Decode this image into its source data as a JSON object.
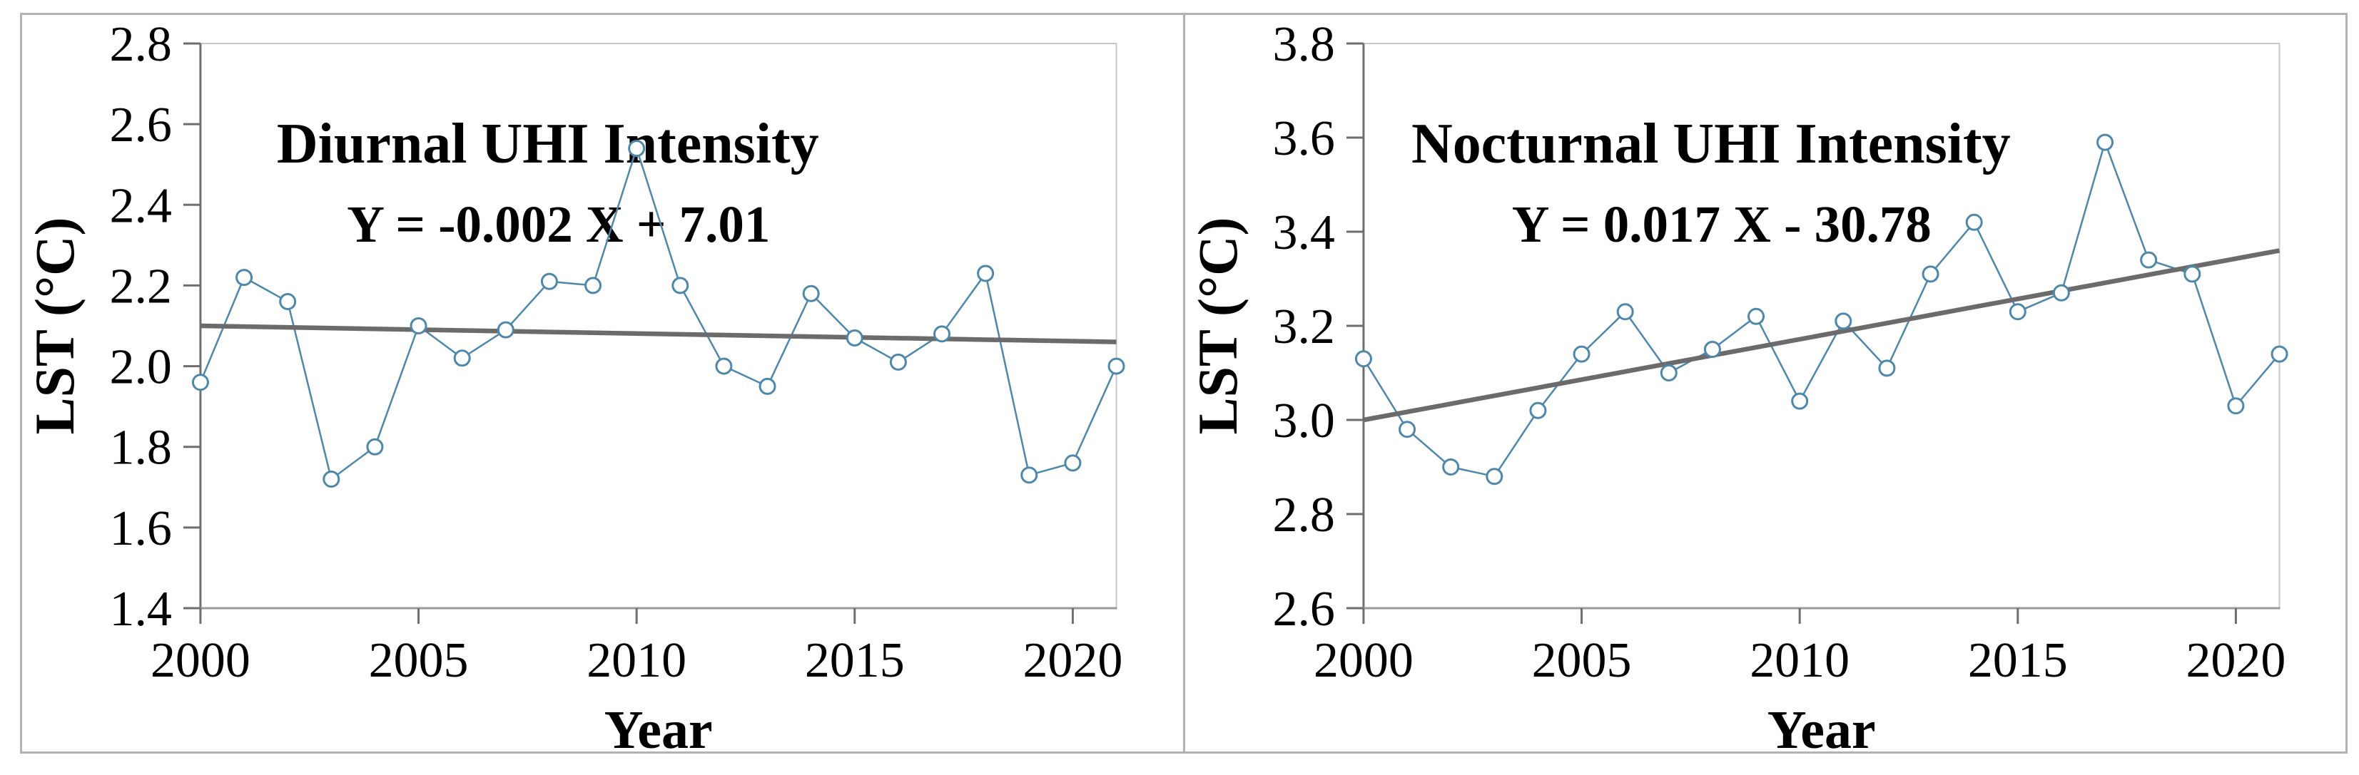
{
  "figure": {
    "background": "#ffffff",
    "border_color": "#b2b2b2",
    "divider_color": "#b2b2b2"
  },
  "chart_data": [
    {
      "type": "line",
      "panel": "left",
      "title": "Diurnal UHI Intensity",
      "equation": "Y = -0.002 X + 7.01",
      "xlabel": "Year",
      "ylabel": "LST (°C)",
      "x": [
        2000,
        2001,
        2002,
        2003,
        2004,
        2005,
        2006,
        2007,
        2008,
        2009,
        2010,
        2011,
        2012,
        2013,
        2014,
        2015,
        2016,
        2017,
        2018,
        2019,
        2020,
        2021
      ],
      "values": [
        1.96,
        2.22,
        2.16,
        1.72,
        1.8,
        2.1,
        2.02,
        2.09,
        2.21,
        2.2,
        2.54,
        2.2,
        2.0,
        1.95,
        2.18,
        2.07,
        2.01,
        2.08,
        2.23,
        1.73,
        1.76,
        2.0
      ],
      "ylim": [
        1.4,
        2.8
      ],
      "yticks": [
        1.4,
        1.6,
        1.8,
        2.0,
        2.2,
        2.4,
        2.6,
        2.8
      ],
      "xticks": [
        2000,
        2005,
        2010,
        2015,
        2020
      ],
      "xlim": [
        2000,
        2021
      ],
      "trendline": {
        "x": [
          2000,
          2021
        ],
        "y": [
          2.1,
          2.06
        ]
      },
      "grid": false,
      "legend": null,
      "marker": "open-circle",
      "colors": {
        "series": "#4d87ab",
        "trend": "#6b6b6b",
        "axis": "#6e6e6e",
        "plot_border": "#c9c9c9",
        "text": "#000000"
      }
    },
    {
      "type": "line",
      "panel": "right",
      "title": "Nocturnal UHI Intensity",
      "equation": "Y = 0.017 X - 30.78",
      "xlabel": "Year",
      "ylabel": "LST (°C)",
      "x": [
        2000,
        2001,
        2002,
        2003,
        2004,
        2005,
        2006,
        2007,
        2008,
        2009,
        2010,
        2011,
        2012,
        2013,
        2014,
        2015,
        2016,
        2017,
        2018,
        2019,
        2020,
        2021
      ],
      "values": [
        3.13,
        2.98,
        2.9,
        2.88,
        3.02,
        3.14,
        3.23,
        3.1,
        3.15,
        3.22,
        3.04,
        3.21,
        3.11,
        3.31,
        3.42,
        3.23,
        3.27,
        3.59,
        3.34,
        3.31,
        3.03,
        3.14
      ],
      "ylim": [
        2.6,
        3.8
      ],
      "yticks": [
        2.6,
        2.8,
        3.0,
        3.2,
        3.4,
        3.6,
        3.8
      ],
      "xticks": [
        2000,
        2005,
        2010,
        2015,
        2020
      ],
      "xlim": [
        2000,
        2021
      ],
      "trendline": {
        "x": [
          2000,
          2021
        ],
        "y": [
          3.0,
          3.36
        ]
      },
      "grid": false,
      "legend": null,
      "marker": "open-circle",
      "colors": {
        "series": "#4d87ab",
        "trend": "#6b6b6b",
        "axis": "#6e6e6e",
        "plot_border": "#c9c9c9",
        "text": "#000000"
      }
    }
  ]
}
